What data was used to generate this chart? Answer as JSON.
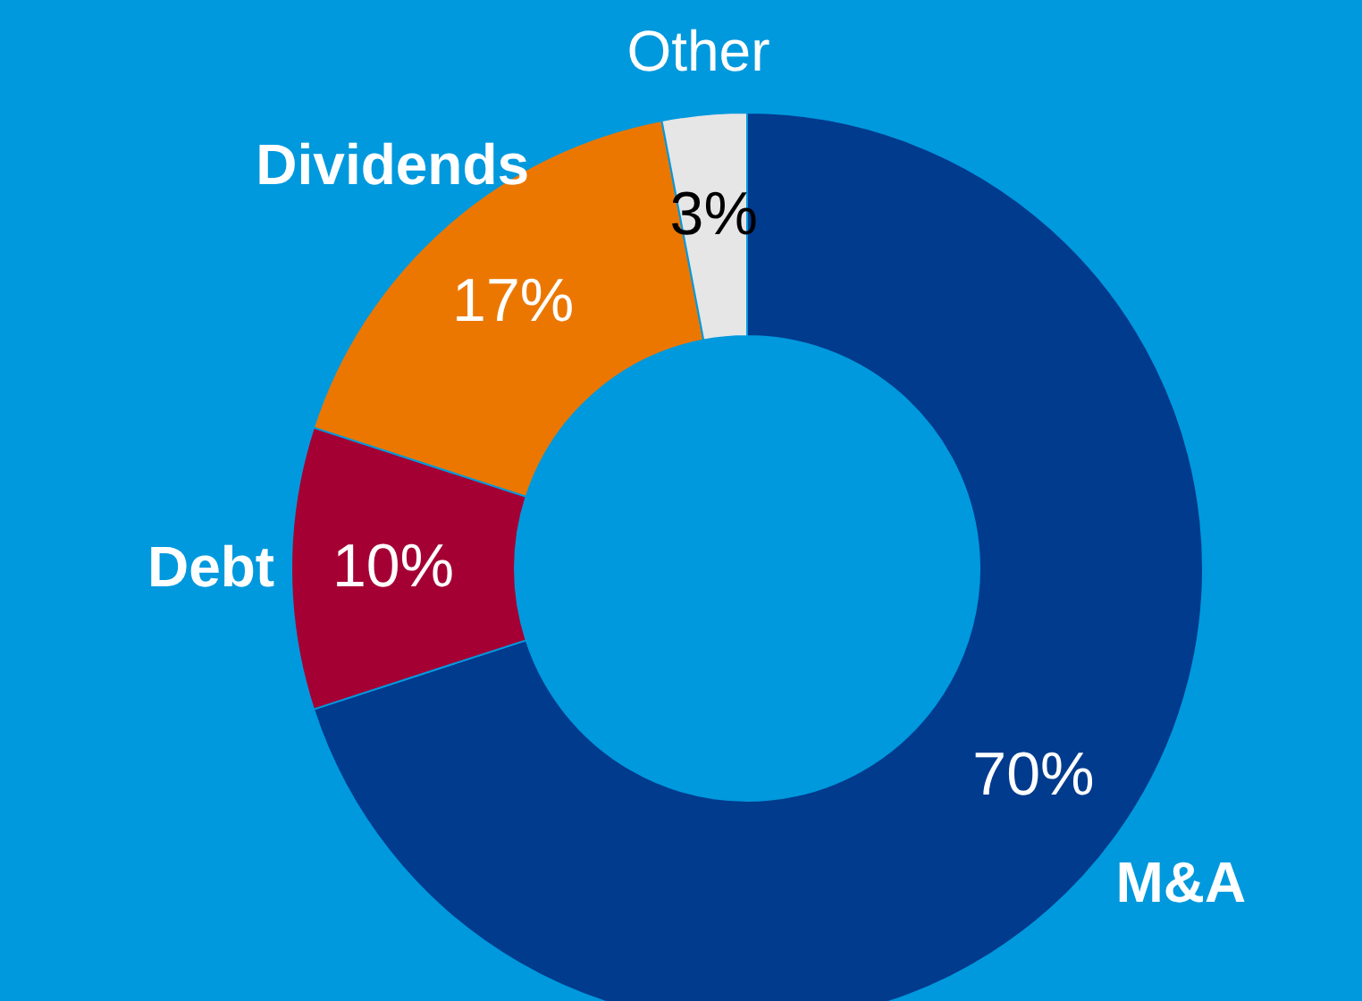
{
  "chart_data": {
    "type": "donut",
    "categories": [
      "M&A",
      "Debt",
      "Dividends",
      "Other"
    ],
    "values": [
      70,
      10,
      17,
      3
    ],
    "colors": [
      "#003b8e",
      "#a50034",
      "#ec7700",
      "#e6e6e6"
    ],
    "value_labels": [
      "70%",
      "10%",
      "17%",
      "3%"
    ]
  }
}
